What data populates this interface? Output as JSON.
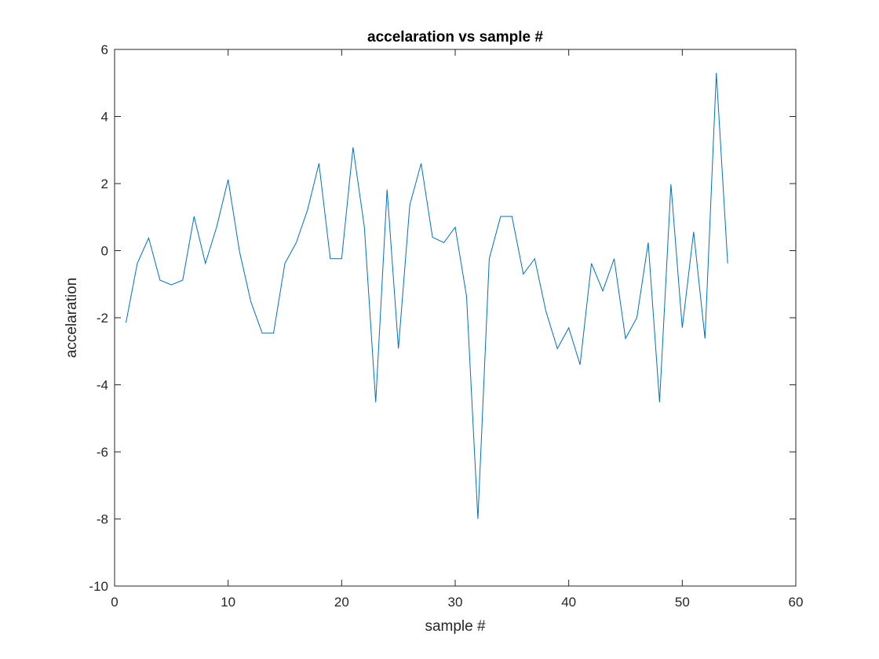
{
  "chart_data": {
    "type": "line",
    "title": "accelaration vs sample #",
    "xlabel": "sample #",
    "ylabel": "accelaration",
    "xlim": [
      0,
      60
    ],
    "ylim": [
      -10,
      6
    ],
    "xticks": [
      0,
      10,
      20,
      30,
      40,
      50,
      60
    ],
    "yticks": [
      -10,
      -8,
      -6,
      -4,
      -2,
      0,
      2,
      4,
      6
    ],
    "grid": false,
    "box": true,
    "series": [
      {
        "color": "#0072BD",
        "x": [
          1,
          2,
          3,
          4,
          5,
          6,
          7,
          8,
          9,
          10,
          11,
          12,
          13,
          14,
          15,
          16,
          17,
          18,
          19,
          20,
          21,
          22,
          23,
          24,
          25,
          26,
          27,
          28,
          29,
          30,
          31,
          32,
          33,
          34,
          35,
          36,
          37,
          38,
          39,
          40,
          41,
          42,
          43,
          44,
          45,
          46,
          47,
          48,
          49,
          50,
          51,
          52,
          53,
          54
        ],
        "y": [
          -2.15,
          -0.38,
          0.38,
          -0.88,
          -1.02,
          -0.88,
          1.02,
          -0.38,
          0.72,
          2.12,
          -0.02,
          -1.52,
          -2.46,
          -2.46,
          -0.38,
          0.24,
          1.22,
          2.6,
          -0.24,
          -0.24,
          3.08,
          0.7,
          -4.52,
          1.82,
          -2.92,
          1.36,
          2.6,
          0.4,
          0.24,
          0.7,
          -1.36,
          -8.0,
          -0.24,
          1.02,
          1.02,
          -0.7,
          -0.24,
          -1.82,
          -2.92,
          -2.3,
          -3.4,
          -0.38,
          -1.2,
          -0.24,
          -2.62,
          -2.0,
          0.24,
          -4.52,
          1.98,
          -2.3,
          0.56,
          -2.62,
          5.3,
          -0.38
        ]
      }
    ]
  }
}
